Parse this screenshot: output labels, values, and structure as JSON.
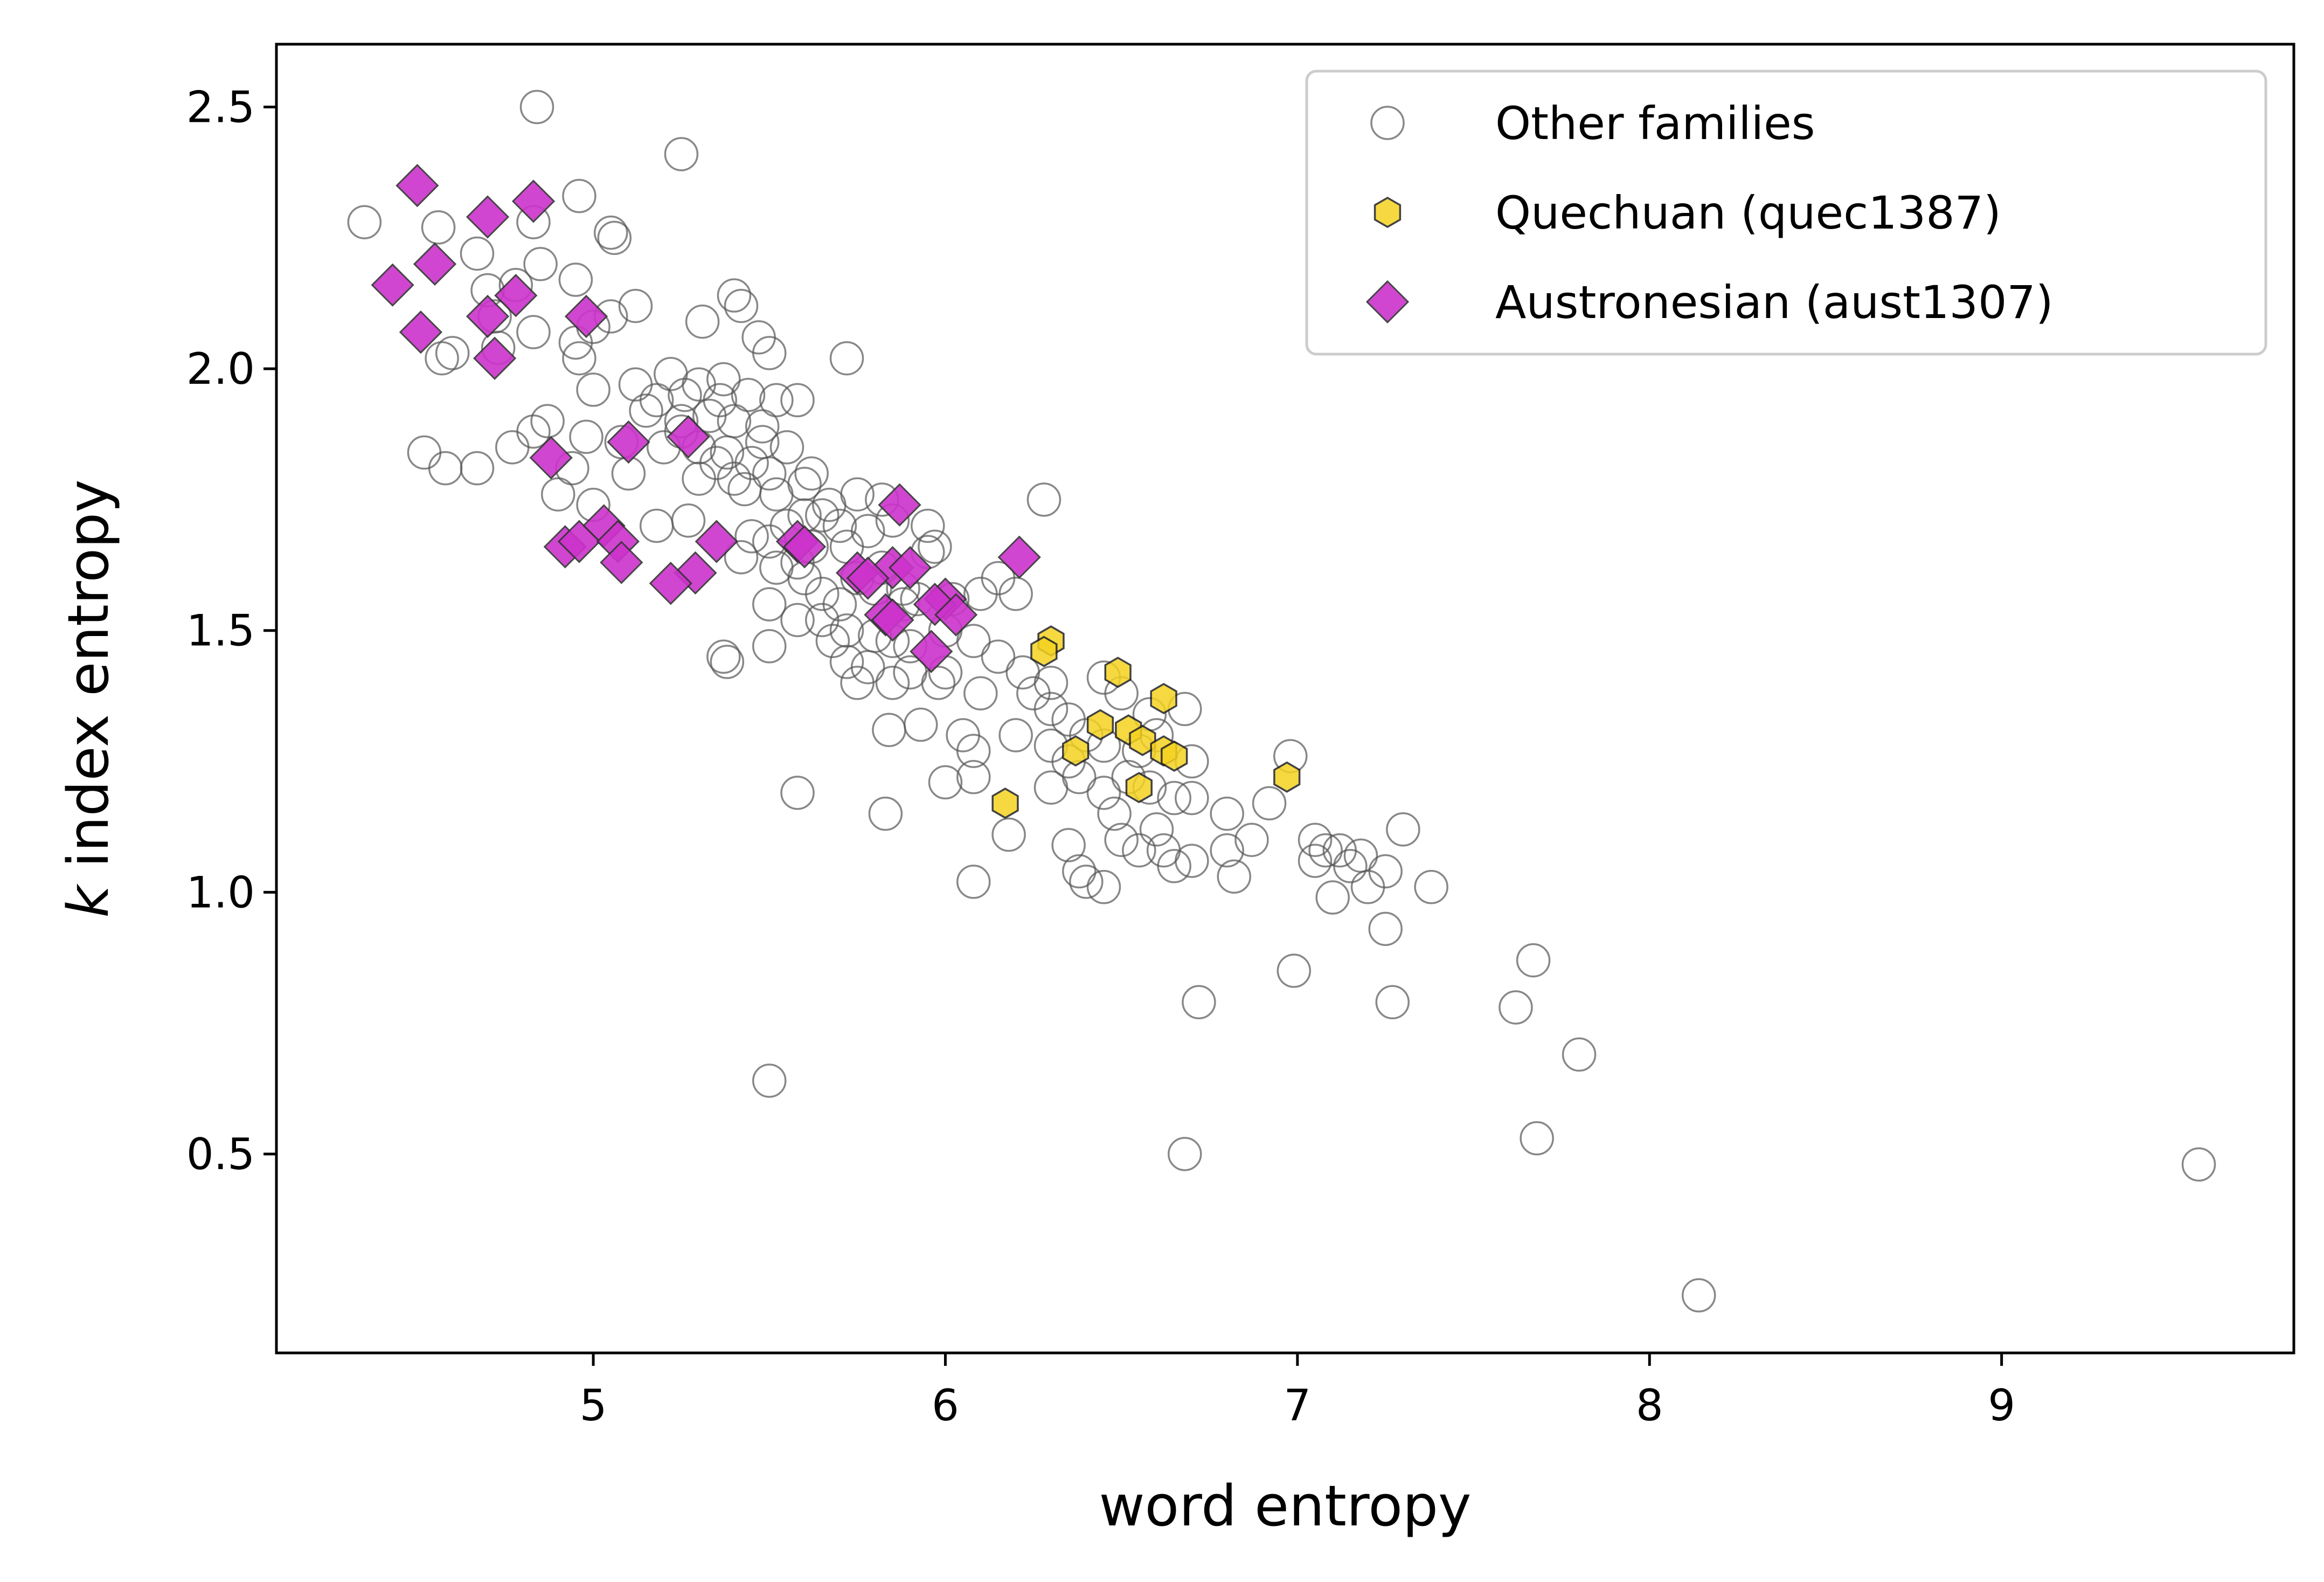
{
  "chart_data": {
    "type": "scatter",
    "title": "",
    "xlabel": "word entropy",
    "ylabel_italic": "k",
    "ylabel_rest": " index entropy",
    "xlim": [
      4.1,
      9.83
    ],
    "ylim": [
      0.12,
      2.62
    ],
    "xticks": [
      5,
      6,
      7,
      8,
      9
    ],
    "yticks": [
      0.5,
      1.0,
      1.5,
      2.0,
      2.5
    ],
    "xtick_labels": [
      "5",
      "6",
      "7",
      "8",
      "9"
    ],
    "ytick_labels": [
      "0.5",
      "1.0",
      "1.5",
      "2.0",
      "2.5"
    ],
    "grid": false,
    "legend_position": "top-right",
    "series": [
      {
        "name": "Other families",
        "marker": "circle",
        "face_color": "none",
        "edge_color": "#555555",
        "points": [
          [
            4.84,
            2.5
          ],
          [
            5.25,
            2.41
          ],
          [
            4.35,
            2.28
          ],
          [
            4.56,
            2.27
          ],
          [
            4.83,
            2.28
          ],
          [
            4.96,
            2.33
          ],
          [
            5.05,
            2.26
          ],
          [
            5.06,
            2.25
          ],
          [
            4.67,
            2.22
          ],
          [
            4.85,
            2.2
          ],
          [
            4.95,
            2.17
          ],
          [
            4.7,
            2.15
          ],
          [
            4.78,
            2.16
          ],
          [
            4.72,
            2.1
          ],
          [
            5.0,
            2.08
          ],
          [
            5.12,
            2.12
          ],
          [
            4.95,
            2.05
          ],
          [
            4.83,
            2.07
          ],
          [
            4.6,
            2.03
          ],
          [
            4.57,
            2.02
          ],
          [
            4.73,
            2.04
          ],
          [
            4.96,
            2.02
          ],
          [
            5.05,
            2.1
          ],
          [
            5.4,
            2.14
          ],
          [
            5.42,
            2.12
          ],
          [
            5.31,
            2.09
          ],
          [
            5.47,
            2.06
          ],
          [
            5.5,
            2.03
          ],
          [
            5.72,
            2.02
          ],
          [
            5.22,
            1.99
          ],
          [
            5.3,
            1.97
          ],
          [
            5.37,
            1.98
          ],
          [
            5.12,
            1.97
          ],
          [
            5.0,
            1.96
          ],
          [
            5.18,
            1.94
          ],
          [
            5.26,
            1.95
          ],
          [
            5.36,
            1.94
          ],
          [
            5.44,
            1.95
          ],
          [
            5.52,
            1.94
          ],
          [
            5.58,
            1.94
          ],
          [
            5.15,
            1.92
          ],
          [
            5.25,
            1.9
          ],
          [
            5.33,
            1.91
          ],
          [
            5.4,
            1.9
          ],
          [
            5.48,
            1.89
          ],
          [
            4.87,
            1.9
          ],
          [
            4.83,
            1.88
          ],
          [
            4.77,
            1.85
          ],
          [
            4.98,
            1.87
          ],
          [
            5.08,
            1.86
          ],
          [
            5.2,
            1.85
          ],
          [
            5.3,
            1.85
          ],
          [
            5.38,
            1.84
          ],
          [
            5.48,
            1.86
          ],
          [
            5.55,
            1.85
          ],
          [
            4.52,
            1.84
          ],
          [
            4.58,
            1.81
          ],
          [
            4.67,
            1.81
          ],
          [
            4.94,
            1.81
          ],
          [
            5.1,
            1.8
          ],
          [
            5.3,
            1.79
          ],
          [
            5.4,
            1.79
          ],
          [
            5.5,
            1.8
          ],
          [
            5.62,
            1.8
          ],
          [
            5.43,
            1.77
          ],
          [
            5.52,
            1.76
          ],
          [
            5.6,
            1.78
          ],
          [
            5.67,
            1.74
          ],
          [
            5.75,
            1.76
          ],
          [
            5.82,
            1.75
          ],
          [
            4.9,
            1.76
          ],
          [
            5.0,
            1.74
          ],
          [
            5.18,
            1.7
          ],
          [
            5.27,
            1.71
          ],
          [
            5.45,
            1.68
          ],
          [
            5.5,
            1.67
          ],
          [
            5.55,
            1.7
          ],
          [
            5.62,
            1.66
          ],
          [
            5.7,
            1.7
          ],
          [
            5.78,
            1.69
          ],
          [
            5.85,
            1.71
          ],
          [
            5.95,
            1.7
          ],
          [
            5.97,
            1.66
          ],
          [
            5.42,
            1.64
          ],
          [
            5.52,
            1.62
          ],
          [
            5.6,
            1.6
          ],
          [
            5.65,
            1.57
          ],
          [
            5.7,
            1.55
          ],
          [
            5.75,
            1.6
          ],
          [
            5.8,
            1.58
          ],
          [
            5.88,
            1.58
          ],
          [
            5.92,
            1.56
          ],
          [
            6.02,
            1.56
          ],
          [
            6.1,
            1.57
          ],
          [
            6.15,
            1.6
          ],
          [
            6.2,
            1.57
          ],
          [
            5.5,
            1.55
          ],
          [
            5.58,
            1.52
          ],
          [
            5.65,
            1.52
          ],
          [
            5.72,
            1.5
          ],
          [
            5.8,
            1.49
          ],
          [
            5.85,
            1.48
          ],
          [
            5.9,
            1.47
          ],
          [
            6.0,
            1.5
          ],
          [
            6.08,
            1.48
          ],
          [
            6.15,
            1.45
          ],
          [
            6.28,
            1.75
          ],
          [
            5.37,
            1.45
          ],
          [
            5.38,
            1.44
          ],
          [
            5.5,
            1.47
          ],
          [
            5.72,
            1.44
          ],
          [
            5.78,
            1.43
          ],
          [
            5.85,
            1.4
          ],
          [
            5.9,
            1.42
          ],
          [
            5.98,
            1.4
          ],
          [
            5.75,
            1.4
          ],
          [
            6.0,
            1.42
          ],
          [
            6.1,
            1.38
          ],
          [
            6.25,
            1.38
          ],
          [
            6.3,
            1.35
          ],
          [
            6.35,
            1.33
          ],
          [
            6.45,
            1.41
          ],
          [
            6.5,
            1.38
          ],
          [
            6.58,
            1.34
          ],
          [
            6.68,
            1.35
          ],
          [
            5.58,
            1.19
          ],
          [
            5.83,
            1.15
          ],
          [
            5.84,
            1.31
          ],
          [
            5.93,
            1.32
          ],
          [
            6.05,
            1.3
          ],
          [
            6.08,
            1.27
          ],
          [
            6.2,
            1.3
          ],
          [
            6.3,
            1.28
          ],
          [
            6.4,
            1.3
          ],
          [
            6.45,
            1.28
          ],
          [
            6.55,
            1.27
          ],
          [
            6.6,
            1.3
          ],
          [
            6.7,
            1.25
          ],
          [
            6.0,
            1.21
          ],
          [
            6.08,
            1.22
          ],
          [
            6.18,
            1.11
          ],
          [
            6.3,
            1.2
          ],
          [
            6.38,
            1.22
          ],
          [
            6.45,
            1.19
          ],
          [
            6.52,
            1.22
          ],
          [
            6.58,
            1.2
          ],
          [
            6.65,
            1.18
          ],
          [
            6.7,
            1.18
          ],
          [
            6.8,
            1.15
          ],
          [
            6.92,
            1.17
          ],
          [
            6.98,
            1.26
          ],
          [
            6.35,
            1.09
          ],
          [
            6.38,
            1.04
          ],
          [
            6.4,
            1.02
          ],
          [
            6.45,
            1.01
          ],
          [
            6.5,
            1.1
          ],
          [
            6.55,
            1.08
          ],
          [
            6.6,
            1.12
          ],
          [
            6.62,
            1.08
          ],
          [
            6.65,
            1.05
          ],
          [
            6.7,
            1.06
          ],
          [
            6.8,
            1.08
          ],
          [
            6.82,
            1.03
          ],
          [
            6.87,
            1.1
          ],
          [
            6.08,
            1.02
          ],
          [
            7.05,
            1.1
          ],
          [
            7.08,
            1.08
          ],
          [
            7.12,
            1.08
          ],
          [
            7.18,
            1.07
          ],
          [
            7.05,
            1.06
          ],
          [
            7.15,
            1.05
          ],
          [
            7.25,
            1.04
          ],
          [
            7.1,
            0.99
          ],
          [
            7.2,
            1.01
          ],
          [
            7.3,
            1.12
          ],
          [
            7.38,
            1.01
          ],
          [
            7.25,
            0.93
          ],
          [
            6.99,
            0.85
          ],
          [
            6.72,
            0.79
          ],
          [
            7.27,
            0.79
          ],
          [
            7.62,
            0.78
          ],
          [
            7.67,
            0.87
          ],
          [
            7.8,
            0.69
          ],
          [
            5.5,
            0.64
          ],
          [
            6.68,
            0.5
          ],
          [
            7.68,
            0.53
          ],
          [
            9.56,
            0.48
          ],
          [
            8.14,
            0.23
          ],
          [
            5.65,
            1.72
          ],
          [
            5.72,
            1.66
          ],
          [
            5.58,
            1.63
          ],
          [
            5.82,
            1.62
          ],
          [
            5.88,
            1.55
          ],
          [
            5.68,
            1.48
          ],
          [
            6.22,
            1.42
          ],
          [
            6.35,
            1.25
          ],
          [
            6.48,
            1.15
          ],
          [
            5.95,
            1.65
          ],
          [
            6.3,
            1.4
          ],
          [
            5.35,
            1.82
          ],
          [
            5.6,
            1.72
          ],
          [
            5.25,
            1.88
          ],
          [
            5.45,
            1.82
          ]
        ]
      },
      {
        "name": "Quechuan (quec1387)",
        "marker": "hexagon",
        "face_color": "#f5d320",
        "edge_color": "#222222",
        "points": [
          [
            6.3,
            1.48
          ],
          [
            6.28,
            1.46
          ],
          [
            6.49,
            1.42
          ],
          [
            6.62,
            1.37
          ],
          [
            6.44,
            1.32
          ],
          [
            6.52,
            1.31
          ],
          [
            6.56,
            1.29
          ],
          [
            6.37,
            1.27
          ],
          [
            6.62,
            1.27
          ],
          [
            6.65,
            1.26
          ],
          [
            6.97,
            1.22
          ],
          [
            6.55,
            1.2
          ],
          [
            6.17,
            1.17
          ]
        ]
      },
      {
        "name": "Austronesian (aust1307)",
        "marker": "diamond",
        "face_color": "#cc33cc",
        "edge_color": "#333333",
        "points": [
          [
            4.5,
            2.35
          ],
          [
            4.7,
            2.29
          ],
          [
            4.83,
            2.32
          ],
          [
            4.55,
            2.2
          ],
          [
            4.43,
            2.16
          ],
          [
            4.78,
            2.14
          ],
          [
            4.7,
            2.1
          ],
          [
            4.98,
            2.1
          ],
          [
            4.51,
            2.07
          ],
          [
            4.72,
            2.02
          ],
          [
            5.1,
            1.86
          ],
          [
            5.27,
            1.87
          ],
          [
            4.88,
            1.83
          ],
          [
            5.87,
            1.74
          ],
          [
            5.03,
            1.7
          ],
          [
            4.92,
            1.66
          ],
          [
            4.96,
            1.67
          ],
          [
            5.07,
            1.67
          ],
          [
            5.35,
            1.67
          ],
          [
            5.58,
            1.67
          ],
          [
            5.6,
            1.66
          ],
          [
            5.08,
            1.63
          ],
          [
            6.21,
            1.64
          ],
          [
            5.85,
            1.62
          ],
          [
            5.9,
            1.62
          ],
          [
            5.75,
            1.61
          ],
          [
            5.78,
            1.6
          ],
          [
            5.29,
            1.61
          ],
          [
            5.22,
            1.59
          ],
          [
            6.0,
            1.56
          ],
          [
            5.97,
            1.55
          ],
          [
            6.03,
            1.53
          ],
          [
            5.83,
            1.53
          ],
          [
            5.85,
            1.52
          ],
          [
            5.96,
            1.46
          ]
        ]
      }
    ]
  }
}
